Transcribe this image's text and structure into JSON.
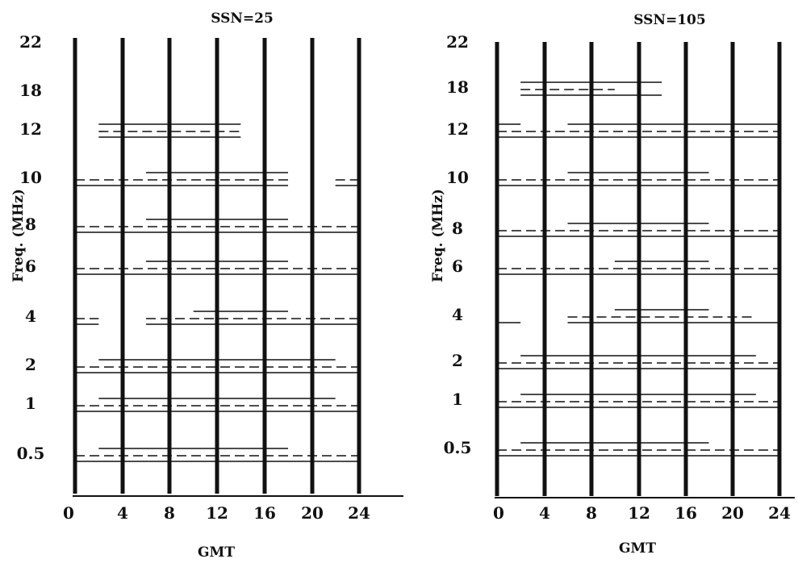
{
  "figure": {
    "ink": "#111111",
    "background": "#ffffff"
  },
  "chart_data": [
    {
      "type": "line",
      "title": "SSN=25",
      "xlabel": "GMT",
      "ylabel": "Freq. (MHz)",
      "xlim": [
        0,
        24
      ],
      "x_ticks": [
        "0",
        "4",
        "8",
        "12",
        "16",
        "20",
        "24"
      ],
      "y_ticks": [
        "0.5",
        "1",
        "2",
        "4",
        "6",
        "8",
        "10",
        "12",
        "18",
        "22"
      ],
      "segments": [
        {
          "freq": "12",
          "row": 0,
          "x": [
            2,
            14
          ],
          "style": "solid"
        },
        {
          "freq": "12",
          "row": 1,
          "x": [
            2,
            14
          ],
          "style": "dashed"
        },
        {
          "freq": "12",
          "row": 2,
          "x": [
            2,
            14
          ],
          "style": "solid"
        },
        {
          "freq": "10",
          "row": 0,
          "x": [
            6,
            18
          ],
          "style": "solid"
        },
        {
          "freq": "10",
          "row": 1,
          "x": [
            0,
            18
          ],
          "style": "dashed"
        },
        {
          "freq": "10",
          "row": 1,
          "x": [
            22,
            24
          ],
          "style": "dashed"
        },
        {
          "freq": "10",
          "row": 2,
          "x": [
            0,
            18
          ],
          "style": "solid"
        },
        {
          "freq": "10",
          "row": 2,
          "x": [
            22,
            24
          ],
          "style": "solid"
        },
        {
          "freq": "8",
          "row": 0,
          "x": [
            6,
            18
          ],
          "style": "solid"
        },
        {
          "freq": "8",
          "row": 1,
          "x": [
            0,
            24
          ],
          "style": "dashed"
        },
        {
          "freq": "8",
          "row": 2,
          "x": [
            0,
            24
          ],
          "style": "solid"
        },
        {
          "freq": "6",
          "row": 0,
          "x": [
            6,
            18
          ],
          "style": "solid"
        },
        {
          "freq": "6",
          "row": 1,
          "x": [
            0,
            24
          ],
          "style": "dashed"
        },
        {
          "freq": "6",
          "row": 2,
          "x": [
            0,
            24
          ],
          "style": "solid"
        },
        {
          "freq": "4",
          "row": 0,
          "x": [
            10,
            18
          ],
          "style": "solid"
        },
        {
          "freq": "4",
          "row": 1,
          "x": [
            0,
            2
          ],
          "style": "dashed"
        },
        {
          "freq": "4",
          "row": 1,
          "x": [
            6,
            24
          ],
          "style": "dashed"
        },
        {
          "freq": "4",
          "row": 2,
          "x": [
            0,
            2
          ],
          "style": "solid"
        },
        {
          "freq": "4",
          "row": 2,
          "x": [
            6,
            24
          ],
          "style": "solid"
        },
        {
          "freq": "2",
          "row": 0,
          "x": [
            2,
            22
          ],
          "style": "solid"
        },
        {
          "freq": "2",
          "row": 1,
          "x": [
            0,
            24
          ],
          "style": "dashed"
        },
        {
          "freq": "2",
          "row": 2,
          "x": [
            0,
            24
          ],
          "style": "solid"
        },
        {
          "freq": "1",
          "row": 0,
          "x": [
            2,
            22
          ],
          "style": "solid"
        },
        {
          "freq": "1",
          "row": 1,
          "x": [
            0,
            24
          ],
          "style": "dashed"
        },
        {
          "freq": "1",
          "row": 2,
          "x": [
            0,
            24
          ],
          "style": "solid"
        },
        {
          "freq": "0.5",
          "row": 0,
          "x": [
            2,
            18
          ],
          "style": "solid"
        },
        {
          "freq": "0.5",
          "row": 1,
          "x": [
            0,
            24
          ],
          "style": "dashed"
        },
        {
          "freq": "0.5",
          "row": 2,
          "x": [
            0,
            24
          ],
          "style": "solid"
        }
      ]
    },
    {
      "type": "line",
      "title": "SSN=105",
      "xlabel": "GMT",
      "ylabel": "Freq. (MHz)",
      "xlim": [
        0,
        24
      ],
      "x_ticks": [
        "0",
        "4",
        "8",
        "12",
        "16",
        "20",
        "24"
      ],
      "y_ticks": [
        "0.5",
        "1",
        "2",
        "4",
        "6",
        "8",
        "10",
        "12",
        "18",
        "22"
      ],
      "segments": [
        {
          "freq": "18",
          "row": 0,
          "x": [
            2,
            14
          ],
          "style": "solid"
        },
        {
          "freq": "18",
          "row": 1,
          "x": [
            2,
            10
          ],
          "style": "dashed"
        },
        {
          "freq": "18",
          "row": 2,
          "x": [
            2,
            14
          ],
          "style": "solid"
        },
        {
          "freq": "12",
          "row": 0,
          "x": [
            0,
            2
          ],
          "style": "solid"
        },
        {
          "freq": "12",
          "row": 0,
          "x": [
            6,
            24
          ],
          "style": "solid"
        },
        {
          "freq": "12",
          "row": 1,
          "x": [
            0,
            24
          ],
          "style": "dashed"
        },
        {
          "freq": "12",
          "row": 2,
          "x": [
            0,
            24
          ],
          "style": "solid"
        },
        {
          "freq": "10",
          "row": 0,
          "x": [
            6,
            18
          ],
          "style": "solid"
        },
        {
          "freq": "10",
          "row": 1,
          "x": [
            0,
            24
          ],
          "style": "dashed"
        },
        {
          "freq": "10",
          "row": 2,
          "x": [
            0,
            24
          ],
          "style": "solid"
        },
        {
          "freq": "8",
          "row": 0,
          "x": [
            6,
            18
          ],
          "style": "solid"
        },
        {
          "freq": "8",
          "row": 1,
          "x": [
            0,
            24
          ],
          "style": "dashed"
        },
        {
          "freq": "8",
          "row": 2,
          "x": [
            0,
            24
          ],
          "style": "solid"
        },
        {
          "freq": "6",
          "row": 0,
          "x": [
            10,
            18
          ],
          "style": "solid"
        },
        {
          "freq": "6",
          "row": 1,
          "x": [
            0,
            24
          ],
          "style": "dashed"
        },
        {
          "freq": "6",
          "row": 2,
          "x": [
            0,
            24
          ],
          "style": "solid"
        },
        {
          "freq": "4",
          "row": 0,
          "x": [
            10,
            18
          ],
          "style": "solid"
        },
        {
          "freq": "4",
          "row": 1,
          "x": [
            6,
            22
          ],
          "style": "dashed"
        },
        {
          "freq": "4",
          "row": 2,
          "x": [
            0,
            2
          ],
          "style": "solid"
        },
        {
          "freq": "4",
          "row": 2,
          "x": [
            6,
            24
          ],
          "style": "solid"
        },
        {
          "freq": "2",
          "row": 0,
          "x": [
            2,
            22
          ],
          "style": "solid"
        },
        {
          "freq": "2",
          "row": 1,
          "x": [
            0,
            24
          ],
          "style": "dashed"
        },
        {
          "freq": "2",
          "row": 2,
          "x": [
            0,
            24
          ],
          "style": "solid"
        },
        {
          "freq": "1",
          "row": 0,
          "x": [
            2,
            22
          ],
          "style": "solid"
        },
        {
          "freq": "1",
          "row": 1,
          "x": [
            0,
            24
          ],
          "style": "dashed"
        },
        {
          "freq": "1",
          "row": 2,
          "x": [
            0,
            24
          ],
          "style": "solid"
        },
        {
          "freq": "0.5",
          "row": 0,
          "x": [
            2,
            18
          ],
          "style": "solid"
        },
        {
          "freq": "0.5",
          "row": 1,
          "x": [
            0,
            24
          ],
          "style": "dashed"
        },
        {
          "freq": "0.5",
          "row": 2,
          "x": [
            0,
            24
          ],
          "style": "solid"
        }
      ]
    }
  ]
}
